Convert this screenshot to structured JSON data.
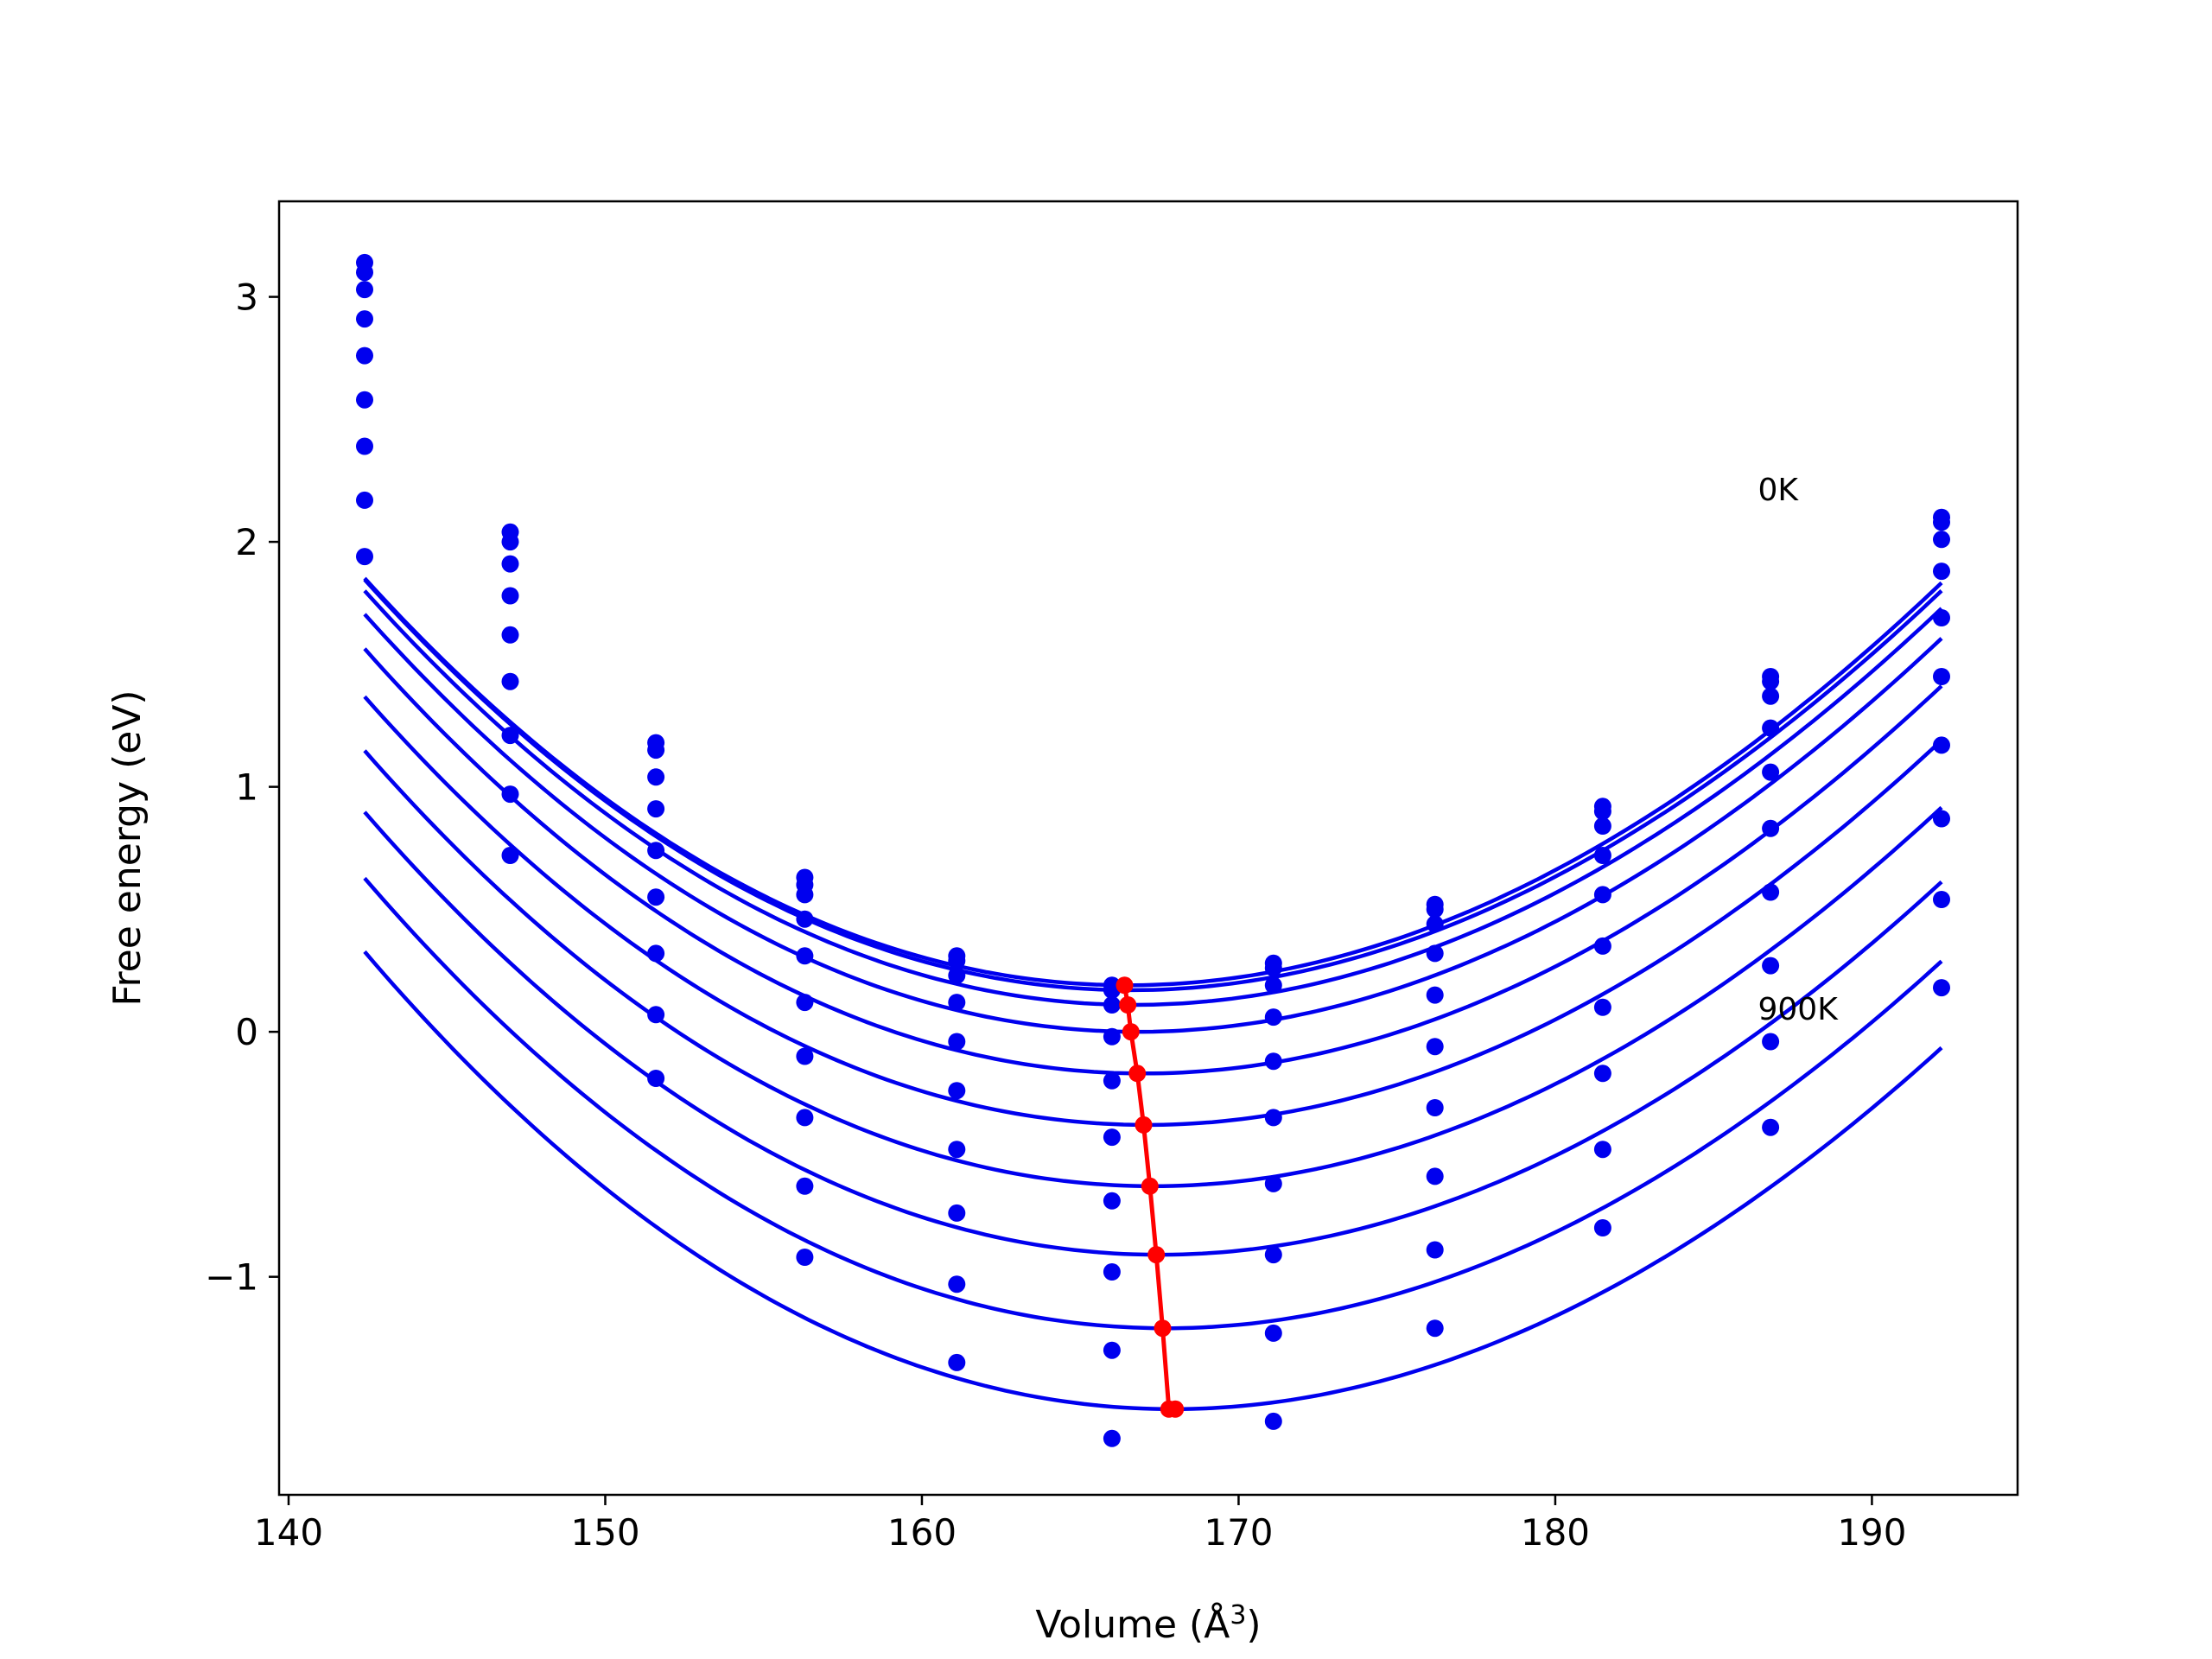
{
  "chart_data": {
    "type": "line",
    "title": "",
    "xlabel": "Volume (Å",
    "xlabel_sup": "3",
    "xlabel_close": ")",
    "ylabel": "Free energy (eV)",
    "xlim": [
      139.7,
      194.6
    ],
    "ylim": [
      -1.89,
      3.39
    ],
    "xticks": [
      140,
      150,
      160,
      170,
      180,
      190
    ],
    "xtick_labels": [
      "140",
      "150",
      "160",
      "170",
      "180",
      "190"
    ],
    "yticks": [
      -1,
      0,
      1,
      2,
      3
    ],
    "ytick_labels": [
      "−1",
      "0",
      "1",
      "2",
      "3"
    ],
    "grid": false,
    "colors": {
      "curves": "#0000ee",
      "minima": "#ff0000"
    },
    "x": [
      142.4,
      147.0,
      151.6,
      156.3,
      161.1,
      166.0,
      171.1,
      176.2,
      181.5,
      186.8,
      192.2
    ],
    "annotations": [
      {
        "text": "0K",
        "x": 186.4,
        "y": 2.17
      },
      {
        "text": "900K",
        "x": 186.4,
        "y": 0.05
      }
    ],
    "series": [
      {
        "points": [
          3.14,
          2.04,
          1.18,
          0.63,
          0.31,
          0.19,
          0.28,
          0.52,
          0.92,
          1.45,
          2.1
        ],
        "fit": {
          "a": 0.00268,
          "v0": 166.5,
          "fmin": 0.19,
          "k": 0.028
        }
      },
      {
        "points": [
          3.1,
          2.0,
          1.15,
          0.6,
          0.29,
          0.17,
          0.26,
          0.5,
          0.9,
          1.43,
          2.08
        ],
        "fit": {
          "a": 0.00268,
          "v0": 166.6,
          "fmin": 0.17,
          "k": 0.028
        }
      },
      {
        "points": [
          3.03,
          1.91,
          1.04,
          0.56,
          0.23,
          0.11,
          0.19,
          0.44,
          0.84,
          1.37,
          2.01
        ],
        "fit": {
          "a": 0.00268,
          "v0": 166.7,
          "fmin": 0.11,
          "k": 0.028
        }
      },
      {
        "points": [
          2.91,
          1.78,
          0.91,
          0.46,
          0.12,
          -0.02,
          0.06,
          0.32,
          0.72,
          1.24,
          1.88
        ],
        "fit": {
          "a": 0.00268,
          "v0": 166.8,
          "fmin": 0.0,
          "k": 0.028
        }
      },
      {
        "points": [
          2.76,
          1.62,
          0.74,
          0.31,
          -0.04,
          -0.2,
          -0.12,
          0.15,
          0.56,
          1.06,
          1.69
        ],
        "fit": {
          "a": 0.00268,
          "v0": 167.0,
          "fmin": -0.17,
          "k": 0.028
        }
      },
      {
        "points": [
          2.58,
          1.43,
          0.55,
          0.12,
          -0.24,
          -0.43,
          -0.35,
          -0.06,
          0.35,
          0.83,
          1.45
        ],
        "fit": {
          "a": 0.00268,
          "v0": 167.1,
          "fmin": -0.38,
          "k": 0.028
        }
      },
      {
        "points": [
          2.39,
          1.21,
          0.32,
          -0.1,
          -0.48,
          -0.69,
          -0.62,
          -0.31,
          0.1,
          0.57,
          1.17
        ],
        "fit": {
          "a": 0.00268,
          "v0": 167.3,
          "fmin": -0.63,
          "k": 0.028
        }
      },
      {
        "points": [
          2.17,
          0.97,
          0.07,
          -0.35,
          -0.74,
          -0.98,
          -0.91,
          -0.59,
          -0.17,
          0.27,
          0.87
        ],
        "fit": {
          "a": 0.00268,
          "v0": 167.5,
          "fmin": -0.91,
          "k": 0.028
        }
      },
      {
        "points": [
          1.94,
          0.72,
          -0.19,
          -0.63,
          -1.03,
          -1.3,
          -1.23,
          -0.89,
          -0.48,
          -0.04,
          0.54
        ],
        "fit": {
          "a": 0.00268,
          "v0": 167.7,
          "fmin": -1.21,
          "k": 0.028
        }
      },
      {
        "points": [
          null,
          null,
          null,
          -0.92,
          -1.35,
          -1.66,
          -1.59,
          -1.21,
          -0.8,
          -0.39,
          0.18
        ],
        "fit": {
          "a": 0.00268,
          "v0": 167.9,
          "fmin": -1.54,
          "k": 0.028
        }
      }
    ],
    "minima_line": {
      "x": [
        166.4,
        166.5,
        166.6,
        166.8,
        167.0,
        167.2,
        167.4,
        167.6,
        167.8,
        168.0
      ],
      "y": [
        0.19,
        0.11,
        0.0,
        -0.17,
        -0.38,
        -0.63,
        -0.91,
        -1.21,
        -1.54,
        -1.54
      ]
    }
  }
}
